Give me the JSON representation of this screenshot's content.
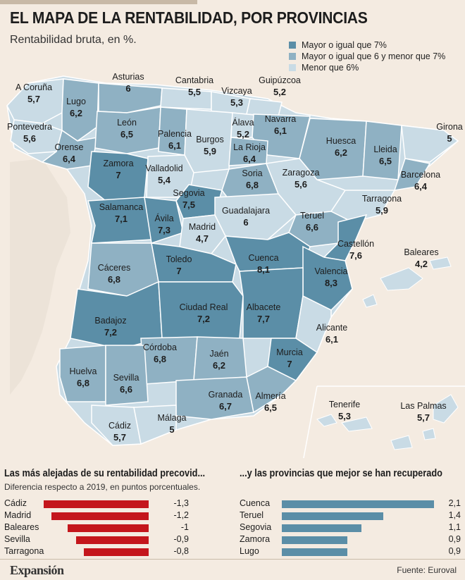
{
  "header": {
    "title": "EL MAPA DE LA RENTABILIDAD, POR PROVINCIAS",
    "subtitle": "Rentabilidad bruta, en %."
  },
  "legend": [
    {
      "label": "Mayor o igual que 7%",
      "color": "#5b8ea7"
    },
    {
      "label": "Mayor o igual que 6 y menor que 7%",
      "color": "#8fb1c3"
    },
    {
      "label": "Menor que 6%",
      "color": "#c9dbe5"
    }
  ],
  "chart_data": [
    {
      "type": "map",
      "title": "EL MAPA DE LA RENTABILIDAD, POR PROVINCIAS",
      "subtitle": "Rentabilidad bruta, en %.",
      "provinces": [
        {
          "name": "A Coruña",
          "value": "5,7"
        },
        {
          "name": "Lugo",
          "value": "6,2"
        },
        {
          "name": "Asturias",
          "value": "6"
        },
        {
          "name": "Cantabria",
          "value": "5,5"
        },
        {
          "name": "Vizcaya",
          "value": "5,3"
        },
        {
          "name": "Guipúzcoa",
          "value": "5,2"
        },
        {
          "name": "Pontevedra",
          "value": "5,6"
        },
        {
          "name": "Orense",
          "value": "6,4"
        },
        {
          "name": "León",
          "value": "6,5"
        },
        {
          "name": "Palencia",
          "value": "6,1"
        },
        {
          "name": "Burgos",
          "value": "5,9"
        },
        {
          "name": "Álava",
          "value": "5,2"
        },
        {
          "name": "Navarra",
          "value": "6,1"
        },
        {
          "name": "La Rioja",
          "value": "6,4"
        },
        {
          "name": "Huesca",
          "value": "6,2"
        },
        {
          "name": "Lleida",
          "value": "6,5"
        },
        {
          "name": "Girona",
          "value": "5"
        },
        {
          "name": "Barcelona",
          "value": "6,4"
        },
        {
          "name": "Zamora",
          "value": "7"
        },
        {
          "name": "Valladolid",
          "value": "5,4"
        },
        {
          "name": "Soria",
          "value": "6,8"
        },
        {
          "name": "Zaragoza",
          "value": "5,6"
        },
        {
          "name": "Tarragona",
          "value": "5,9"
        },
        {
          "name": "Segovia",
          "value": "7,5"
        },
        {
          "name": "Salamanca",
          "value": "7,1"
        },
        {
          "name": "Ávila",
          "value": "7,3"
        },
        {
          "name": "Guadalajara",
          "value": "6"
        },
        {
          "name": "Madrid",
          "value": "4,7"
        },
        {
          "name": "Teruel",
          "value": "6,6"
        },
        {
          "name": "Castellón",
          "value": "7,6"
        },
        {
          "name": "Baleares",
          "value": "4,2"
        },
        {
          "name": "Cáceres",
          "value": "6,8"
        },
        {
          "name": "Toledo",
          "value": "7"
        },
        {
          "name": "Cuenca",
          "value": "8,1"
        },
        {
          "name": "Valencia",
          "value": "8,3"
        },
        {
          "name": "Badajoz",
          "value": "7,2"
        },
        {
          "name": "Ciudad Real",
          "value": "7,2"
        },
        {
          "name": "Albacete",
          "value": "7,7"
        },
        {
          "name": "Alicante",
          "value": "6,1"
        },
        {
          "name": "Córdoba",
          "value": "6,8"
        },
        {
          "name": "Jaén",
          "value": "6,2"
        },
        {
          "name": "Murcia",
          "value": "7"
        },
        {
          "name": "Huelva",
          "value": "6,8"
        },
        {
          "name": "Sevilla",
          "value": "6,6"
        },
        {
          "name": "Granada",
          "value": "6,7"
        },
        {
          "name": "Almería",
          "value": "6,5"
        },
        {
          "name": "Cádiz",
          "value": "5,7"
        },
        {
          "name": "Málaga",
          "value": "5"
        },
        {
          "name": "Tenerife",
          "value": "5,3"
        },
        {
          "name": "Las Palmas",
          "value": "5,7"
        }
      ]
    },
    {
      "type": "bar",
      "title": "Las más alejadas de su rentabilidad precovid...",
      "subtitle": "Diferencia respecto a 2019, en puntos porcentuales.",
      "categories": [
        "Cádiz",
        "Madrid",
        "Baleares",
        "Sevilla",
        "Tarragona"
      ],
      "values": [
        -1.3,
        -1.2,
        -1,
        -0.9,
        -0.8
      ],
      "labels": [
        "-1,3",
        "-1,2",
        "-1",
        "-0,9",
        "-0,8"
      ],
      "color": "#c4161c"
    },
    {
      "type": "bar",
      "title": "...y las provincias que mejor se han recuperado",
      "categories": [
        "Cuenca",
        "Teruel",
        "Segovia",
        "Zamora",
        "Lugo"
      ],
      "values": [
        2.1,
        1.4,
        1.1,
        0.9,
        0.9
      ],
      "labels": [
        "2,1",
        "1,4",
        "1,1",
        "0,9",
        "0,9"
      ],
      "color": "#5b8ea7"
    }
  ],
  "footer": {
    "brand": "Expansión",
    "source": "Fuente: Euroval"
  }
}
